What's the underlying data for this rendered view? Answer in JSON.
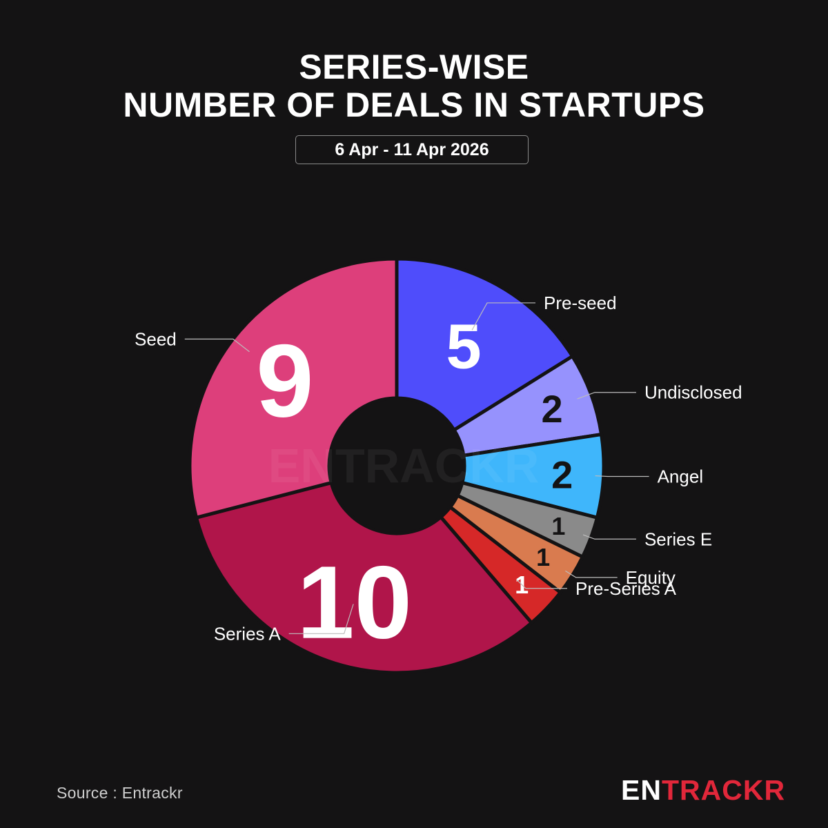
{
  "header": {
    "title_line1": "SERIES-WISE",
    "title_line2": "NUMBER OF DEALS IN STARTUPS",
    "date_range": "6 Apr - 11 Apr 2026"
  },
  "footer": {
    "source": "Source : Entrackr",
    "logo_part1": "EN",
    "logo_part2": "TRACKR"
  },
  "watermark": "ENTRACKR",
  "chart_data": {
    "type": "pie",
    "subtype": "donut",
    "title": "SERIES-WISE NUMBER OF DEALS IN STARTUPS",
    "subtitle": "6 Apr - 11 Apr 2026",
    "slices": [
      {
        "label": "Pre-seed",
        "value": 5,
        "color": "#4f4dfb",
        "value_color": "#ffffff"
      },
      {
        "label": "Undisclosed",
        "value": 2,
        "color": "#9692fd",
        "value_color": "#141314"
      },
      {
        "label": "Angel",
        "value": 2,
        "color": "#3fb6fb",
        "value_color": "#141314"
      },
      {
        "label": "Series E",
        "value": 1,
        "color": "#8a8a8a",
        "value_color": "#141314"
      },
      {
        "label": "Equity",
        "value": 1,
        "color": "#d97b4f",
        "value_color": "#141314"
      },
      {
        "label": "Pre-Series A",
        "value": 1,
        "color": "#d62828",
        "value_color": "#ffffff"
      },
      {
        "label": "Series A",
        "value": 10,
        "color": "#b0154a",
        "value_color": "#ffffff"
      },
      {
        "label": "Seed",
        "value": 9,
        "color": "#dd3f7b",
        "value_color": "#ffffff"
      }
    ],
    "legend": "outside labels with leader lines"
  }
}
